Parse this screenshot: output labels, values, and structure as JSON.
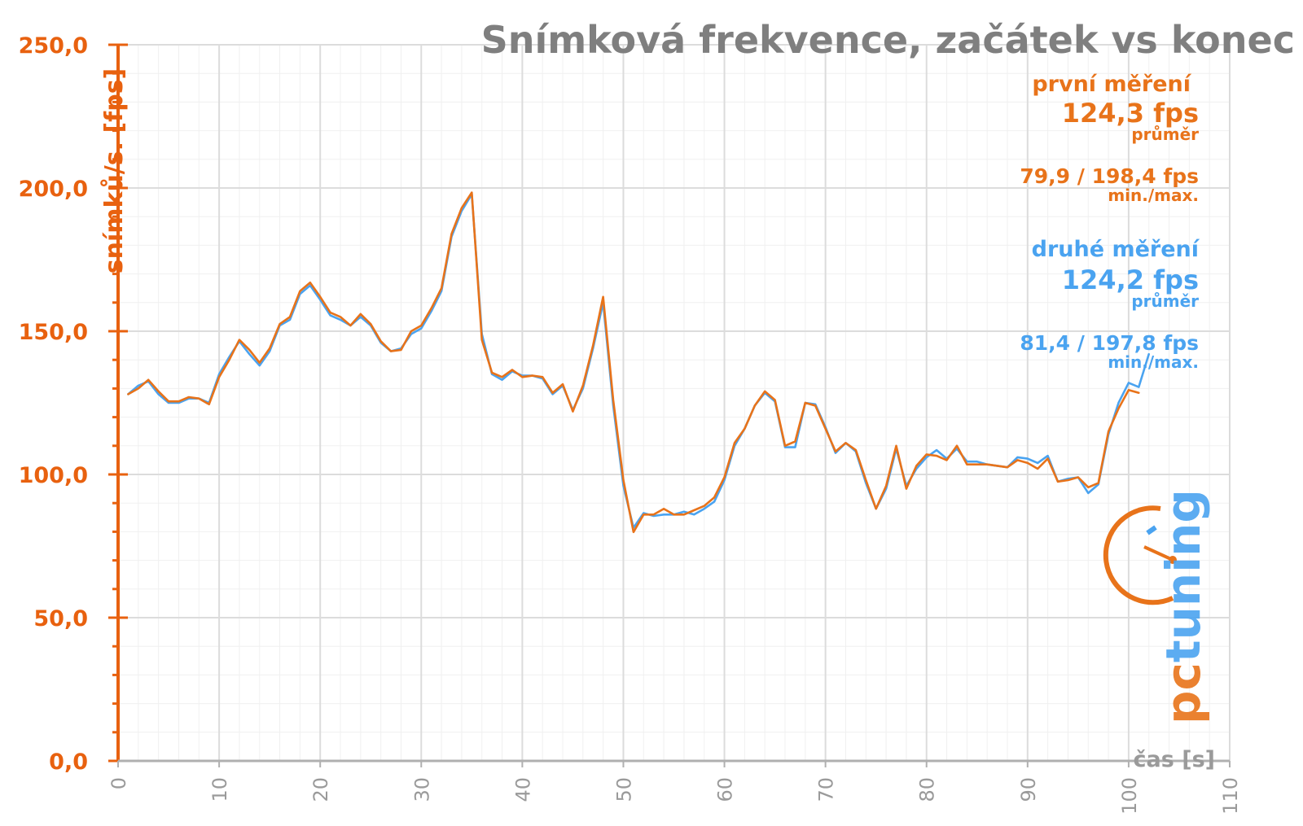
{
  "chart_data": {
    "type": "line",
    "title": "Snímková frekvence, začátek vs konec",
    "xlabel": "čas [s]",
    "ylabel": "snímků/s. [fps]",
    "xlim": [
      0,
      110
    ],
    "ylim": [
      0,
      250
    ],
    "x_ticks": [
      "0",
      "10",
      "20",
      "30",
      "40",
      "50",
      "60",
      "70",
      "80",
      "90",
      "100",
      "110"
    ],
    "y_ticks": [
      "0,0",
      "50,0",
      "100,0",
      "150,0",
      "200,0",
      "250,0"
    ],
    "grid": true,
    "colors": {
      "first": "#e8731a",
      "second": "#4aa3f0",
      "axis": "#e8610f",
      "grid": "#dcdcdc"
    },
    "series": [
      {
        "key": "first",
        "values": [
          128,
          130,
          133,
          129,
          125.5,
          125.5,
          127,
          126.5,
          124.5,
          134,
          140,
          147,
          143.5,
          139,
          144,
          152.5,
          155,
          164,
          167,
          162,
          156.5,
          155,
          152,
          156,
          152.5,
          146.5,
          143,
          143.5,
          150,
          152,
          158,
          165,
          184,
          193,
          198.4,
          147,
          135.5,
          134,
          136.5,
          134,
          134.5,
          134,
          128.5,
          131.5,
          122,
          131,
          145,
          162,
          126,
          98,
          79.9,
          86,
          86,
          88,
          86,
          86,
          87.5,
          89,
          92,
          99,
          111,
          116,
          124,
          129,
          126,
          110,
          111.5,
          125,
          124,
          116,
          108,
          111,
          108.5,
          98,
          88,
          96,
          110,
          95,
          103,
          107,
          106.5,
          105,
          110,
          103.5,
          103.5,
          103.5,
          103,
          102.5,
          105,
          104,
          102,
          105.5,
          97.5,
          98,
          99,
          95.5,
          97,
          115,
          123,
          129.5,
          128.5
        ]
      },
      {
        "key": "second",
        "values": [
          128,
          131,
          132.5,
          128,
          125,
          125,
          126.5,
          126.5,
          125,
          135,
          141,
          146.5,
          142,
          138,
          143,
          152,
          154,
          163,
          166,
          161,
          155.5,
          154,
          152,
          155,
          152,
          146,
          143,
          144,
          149,
          151,
          157,
          164,
          183,
          192,
          197.8,
          149,
          135,
          133,
          136,
          134.5,
          134.5,
          133.5,
          128,
          131,
          122.5,
          130,
          144,
          160,
          124,
          96,
          81.4,
          86.5,
          85.5,
          86,
          86,
          87,
          86,
          88,
          90.5,
          98,
          110,
          116,
          124,
          128.5,
          125.5,
          109.5,
          109.5,
          125,
          124.5,
          116.5,
          107.5,
          111,
          108,
          97,
          88,
          95,
          109,
          96,
          102,
          106,
          108.5,
          105.5,
          109,
          104.5,
          104.5,
          103.5,
          103,
          102.5,
          106,
          105.5,
          104,
          106.5,
          97.5,
          98.5,
          99,
          93.5,
          96.5,
          114,
          125,
          132,
          130.5,
          142
        ]
      }
    ],
    "annotations": {
      "first": {
        "name": "první měření",
        "avg": "124,3 fps",
        "avg_label": "průměr",
        "minmax": "79,9 / 198,4 fps",
        "minmax_label": "min./max."
      },
      "second": {
        "name": "druhé měření",
        "avg": "124,2 fps",
        "avg_label": "průměr",
        "minmax": "81,4 / 197,8 fps",
        "minmax_label": "min./max."
      }
    }
  },
  "logo": {
    "text": "pctuning",
    "color_main": "#4aa3f0",
    "color_accent": "#e8731a"
  }
}
